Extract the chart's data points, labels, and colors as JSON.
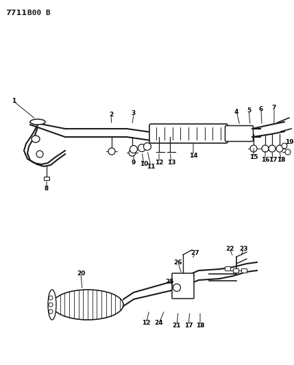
{
  "title": "7711  B00 B",
  "bg_color": "#ffffff",
  "line_color": "#1a1a1a",
  "text_color": "#000000",
  "fig_width": 4.29,
  "fig_height": 5.33,
  "dpi": 100,
  "label_font": 6.5
}
